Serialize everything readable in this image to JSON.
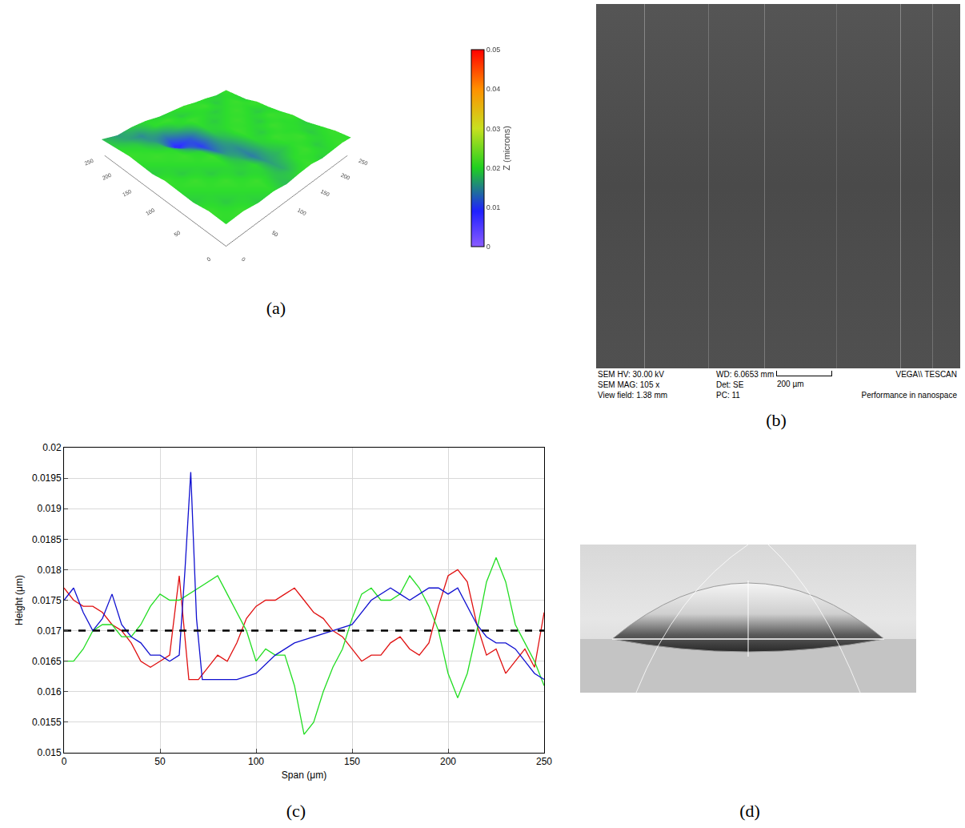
{
  "panel_labels": [
    "(a)",
    "(b)",
    "(c)",
    "(d)"
  ],
  "chart_data": [
    {
      "type": "surface",
      "x": [
        0,
        25,
        50,
        75,
        100,
        125,
        150,
        175,
        200,
        225,
        250
      ],
      "y": [
        0,
        25,
        50,
        75,
        100,
        125,
        150,
        175,
        200,
        225,
        250
      ],
      "z": [
        [
          0.02,
          0.021,
          0.019,
          0.02,
          0.018,
          0.02,
          0.021,
          0.019,
          0.02,
          0.021,
          0.02
        ],
        [
          0.021,
          0.019,
          0.02,
          0.021,
          0.019,
          0.017,
          0.02,
          0.021,
          0.019,
          0.02,
          0.021
        ],
        [
          0.019,
          0.02,
          0.021,
          0.019,
          0.02,
          0.016,
          0.018,
          0.02,
          0.021,
          0.019,
          0.02
        ],
        [
          0.02,
          0.021,
          0.019,
          0.02,
          0.018,
          0.014,
          0.019,
          0.021,
          0.02,
          0.02,
          0.019
        ],
        [
          0.021,
          0.019,
          0.02,
          0.021,
          0.016,
          0.015,
          0.02,
          0.019,
          0.021,
          0.02,
          0.021
        ],
        [
          0.019,
          0.02,
          0.021,
          0.019,
          0.013,
          0.017,
          0.021,
          0.02,
          0.019,
          0.021,
          0.02
        ],
        [
          0.02,
          0.021,
          0.02,
          0.015,
          0.01,
          0.019,
          0.02,
          0.021,
          0.02,
          0.019,
          0.02
        ],
        [
          0.021,
          0.02,
          0.018,
          0.008,
          0.012,
          0.02,
          0.019,
          0.02,
          0.021,
          0.02,
          0.021
        ],
        [
          0.02,
          0.019,
          0.016,
          0.014,
          0.019,
          0.021,
          0.02,
          0.019,
          0.02,
          0.021,
          0.019
        ],
        [
          0.019,
          0.017,
          0.015,
          0.02,
          0.021,
          0.019,
          0.02,
          0.021,
          0.019,
          0.02,
          0.02
        ],
        [
          0.018,
          0.016,
          0.019,
          0.02,
          0.019,
          0.02,
          0.021,
          0.02,
          0.02,
          0.019,
          0.021
        ]
      ],
      "xlim": [
        0,
        250
      ],
      "ylim": [
        0,
        250
      ],
      "zlim": [
        0,
        0.05
      ],
      "xticks": [
        0,
        50,
        100,
        150,
        200,
        250
      ],
      "yticks": [
        0,
        50,
        100,
        150,
        200,
        250
      ],
      "colorbar": {
        "title": "Z (microns)",
        "range": [
          0,
          0.05
        ],
        "ticks": [
          0,
          0.01,
          0.02,
          0.03,
          0.04,
          0.05
        ]
      }
    },
    {
      "type": "line",
      "xlabel": "Span (μm)",
      "ylabel": "Height (μm)",
      "xlim": [
        0,
        250
      ],
      "xticks": [
        0,
        50,
        100,
        150,
        200,
        250
      ],
      "ylim": [
        0.015,
        0.02
      ],
      "yticks": [
        0.015,
        0.0155,
        0.016,
        0.0165,
        0.017,
        0.0175,
        0.018,
        0.0185,
        0.019,
        0.0195,
        0.02
      ],
      "grid": true,
      "series": [
        {
          "color": "#e01010",
          "line_style": "solid",
          "x": [
            0,
            5,
            10,
            15,
            20,
            25,
            30,
            35,
            40,
            45,
            50,
            55,
            60,
            65,
            70,
            75,
            80,
            85,
            90,
            95,
            100,
            105,
            110,
            115,
            120,
            125,
            130,
            135,
            140,
            145,
            150,
            155,
            160,
            165,
            170,
            175,
            180,
            185,
            190,
            195,
            200,
            205,
            210,
            215,
            220,
            225,
            230,
            235,
            240,
            245,
            250
          ],
          "values": [
            0.0177,
            0.0175,
            0.0174,
            0.0174,
            0.0173,
            0.0171,
            0.017,
            0.0168,
            0.0165,
            0.0164,
            0.0165,
            0.0166,
            0.0179,
            0.0162,
            0.0162,
            0.0164,
            0.0166,
            0.0165,
            0.0168,
            0.0172,
            0.0174,
            0.0175,
            0.0175,
            0.0176,
            0.0177,
            0.0175,
            0.0173,
            0.0172,
            0.017,
            0.0169,
            0.0167,
            0.0165,
            0.0166,
            0.0166,
            0.0168,
            0.0169,
            0.0167,
            0.0166,
            0.0168,
            0.0174,
            0.0179,
            0.018,
            0.0178,
            0.0171,
            0.0166,
            0.0167,
            0.0163,
            0.0165,
            0.0167,
            0.0164,
            0.0173
          ]
        },
        {
          "color": "#22dd22",
          "line_style": "solid",
          "x": [
            0,
            5,
            10,
            15,
            20,
            25,
            30,
            35,
            40,
            45,
            50,
            55,
            60,
            65,
            70,
            75,
            80,
            85,
            90,
            95,
            100,
            105,
            110,
            115,
            120,
            125,
            130,
            135,
            140,
            145,
            150,
            155,
            160,
            165,
            170,
            175,
            180,
            185,
            190,
            195,
            200,
            205,
            210,
            215,
            220,
            225,
            230,
            235,
            240,
            245,
            250
          ],
          "values": [
            0.0165,
            0.0165,
            0.0167,
            0.017,
            0.0171,
            0.0171,
            0.0169,
            0.0169,
            0.0171,
            0.0174,
            0.0176,
            0.0175,
            0.0175,
            0.0176,
            0.0177,
            0.0178,
            0.0179,
            0.0176,
            0.0173,
            0.017,
            0.0165,
            0.0167,
            0.0166,
            0.0166,
            0.0161,
            0.0153,
            0.0155,
            0.016,
            0.0164,
            0.0167,
            0.0172,
            0.0176,
            0.0177,
            0.0175,
            0.0175,
            0.0176,
            0.0179,
            0.0177,
            0.0174,
            0.017,
            0.0163,
            0.0159,
            0.0163,
            0.017,
            0.0178,
            0.0182,
            0.0178,
            0.0171,
            0.0168,
            0.0165,
            0.0161
          ]
        },
        {
          "color": "#1010d0",
          "line_style": "solid",
          "x": [
            0,
            5,
            10,
            15,
            20,
            25,
            30,
            35,
            40,
            45,
            50,
            55,
            60,
            63,
            66,
            69,
            72,
            80,
            90,
            100,
            110,
            120,
            130,
            140,
            150,
            160,
            165,
            170,
            175,
            180,
            185,
            190,
            195,
            200,
            205,
            210,
            215,
            220,
            225,
            230,
            235,
            240,
            245,
            250
          ],
          "values": [
            0.0175,
            0.0177,
            0.0173,
            0.017,
            0.0172,
            0.0176,
            0.0171,
            0.0169,
            0.0168,
            0.0166,
            0.0166,
            0.0165,
            0.0166,
            0.018,
            0.0196,
            0.0172,
            0.0162,
            0.0162,
            0.0162,
            0.0163,
            0.0166,
            0.0168,
            0.0169,
            0.017,
            0.0171,
            0.0175,
            0.0176,
            0.0177,
            0.0176,
            0.0175,
            0.0176,
            0.0177,
            0.0177,
            0.0176,
            0.0177,
            0.0174,
            0.0171,
            0.0169,
            0.0168,
            0.0168,
            0.0167,
            0.0165,
            0.0163,
            0.0162
          ]
        },
        {
          "color": "#000000",
          "line_style": "dashed",
          "x": [
            0,
            250
          ],
          "values": [
            0.017,
            0.017
          ]
        }
      ]
    }
  ],
  "sem_image": {
    "type": "image",
    "columns": [
      [
        "SEM HV: 30.00 kV",
        "SEM MAG: 105 x",
        "View field: 1.38 mm"
      ],
      [
        "WD: 6.0653 mm",
        "Det: SE",
        "PC: 11"
      ]
    ],
    "scale_bar": "200 µm",
    "brand": "VEGA\\\\ TESCAN",
    "slogan": "Performance in nanospace"
  }
}
